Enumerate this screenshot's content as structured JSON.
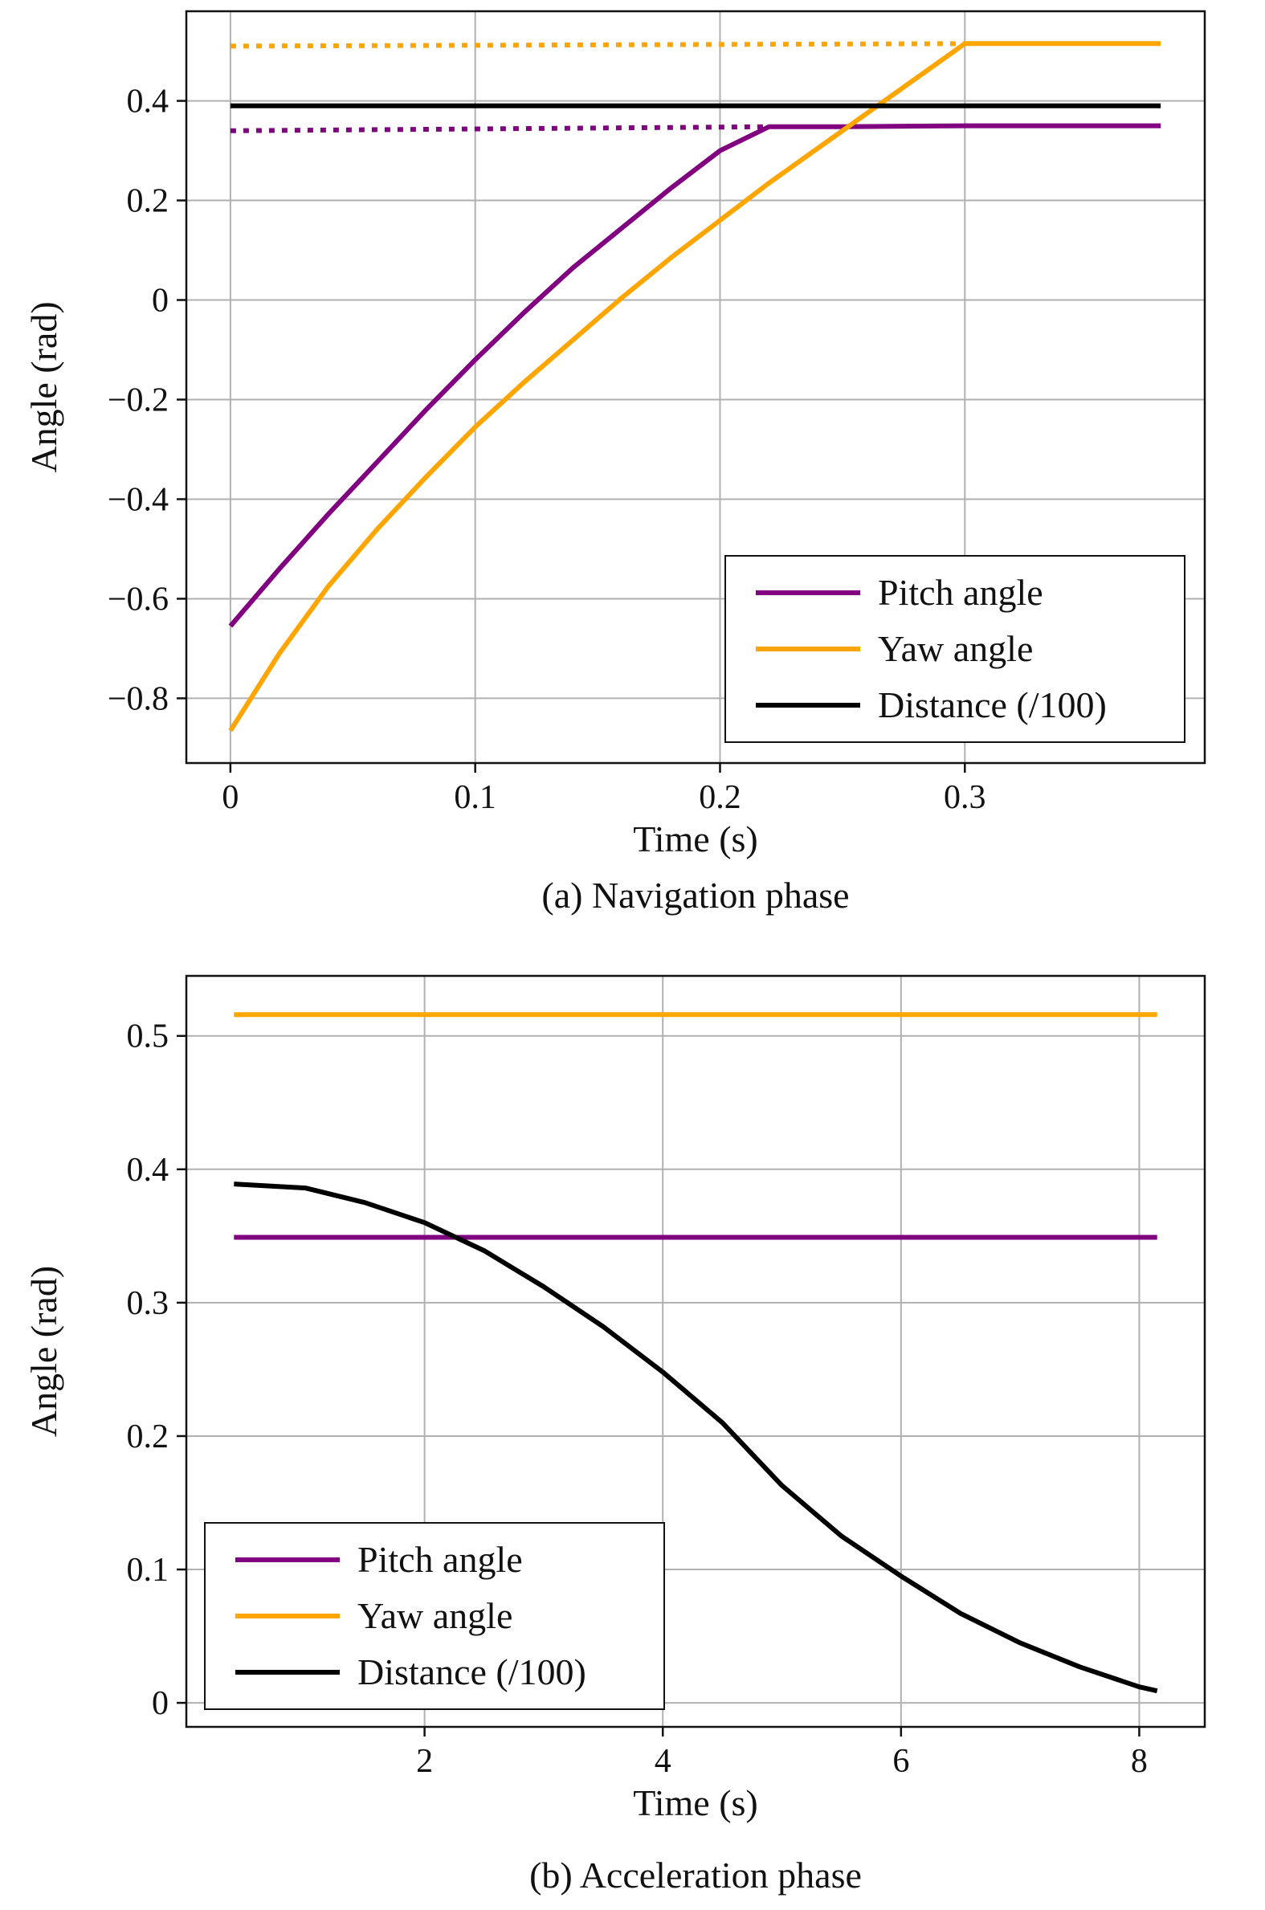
{
  "figure": {
    "panels": [
      {
        "caption": "(a) Navigation phase",
        "xlabel": "Time (s)",
        "ylabel": "Angle (rad)",
        "legend": {
          "location": "lower right",
          "entries": [
            "Pitch angle",
            "Yaw angle",
            "Distance (/100)"
          ]
        }
      },
      {
        "caption": "(b) Acceleration phase",
        "xlabel": "Time (s)",
        "ylabel": "Angle (rad)",
        "legend": {
          "location": "lower left",
          "entries": [
            "Pitch angle",
            "Yaw angle",
            "Distance (/100)"
          ]
        }
      }
    ]
  },
  "colors": {
    "pitch": "#800080",
    "yaw": "#FFA500",
    "distance": "#000000",
    "grid": "#b0b0b0"
  },
  "chart_data": [
    {
      "type": "line",
      "title": "(a) Navigation phase",
      "xlabel": "Time (s)",
      "ylabel": "Angle (rad)",
      "xlim": [
        -0.018,
        0.398
      ],
      "ylim": [
        -0.93,
        0.58
      ],
      "xticks": [
        0,
        0.1,
        0.2,
        0.3
      ],
      "xtick_labels": [
        "0",
        "0.1",
        "0.2",
        "0.3"
      ],
      "yticks": [
        -0.8,
        -0.6,
        -0.4,
        -0.2,
        0,
        0.2,
        0.4
      ],
      "ytick_labels": [
        "−0.8",
        "−0.6",
        "−0.4",
        "−0.2",
        "0",
        "0.2",
        "0.4"
      ],
      "grid": true,
      "legend_placement": "lower right",
      "series": [
        {
          "name": "Pitch angle",
          "color_key": "pitch",
          "style": "solid",
          "x": [
            0,
            0.02,
            0.04,
            0.06,
            0.08,
            0.1,
            0.12,
            0.14,
            0.16,
            0.18,
            0.2,
            0.22,
            0.25,
            0.3,
            0.35,
            0.38
          ],
          "y": [
            -0.655,
            -0.54,
            -0.43,
            -0.325,
            -0.22,
            -0.12,
            -0.025,
            0.065,
            0.145,
            0.225,
            0.3,
            0.348,
            0.348,
            0.35,
            0.35,
            0.35
          ]
        },
        {
          "name": "Yaw angle",
          "color_key": "yaw",
          "style": "solid",
          "x": [
            0,
            0.02,
            0.04,
            0.06,
            0.08,
            0.1,
            0.12,
            0.14,
            0.16,
            0.18,
            0.2,
            0.22,
            0.24,
            0.26,
            0.28,
            0.3,
            0.34,
            0.38
          ],
          "y": [
            -0.865,
            -0.71,
            -0.575,
            -0.46,
            -0.355,
            -0.255,
            -0.165,
            -0.08,
            0.005,
            0.085,
            0.16,
            0.235,
            0.305,
            0.375,
            0.445,
            0.515,
            0.515,
            0.515
          ]
        },
        {
          "name": "Distance (/100)",
          "color_key": "distance",
          "style": "solid",
          "x": [
            0,
            0.38
          ],
          "y": [
            0.39,
            0.39
          ]
        },
        {
          "color_key": "pitch",
          "style": "dotted",
          "x": [
            0,
            0.22
          ],
          "y": [
            0.34,
            0.348
          ]
        },
        {
          "color_key": "yaw",
          "style": "dotted",
          "x": [
            0,
            0.3
          ],
          "y": [
            0.51,
            0.515
          ]
        }
      ]
    },
    {
      "type": "line",
      "title": "(b) Acceleration phase",
      "xlabel": "Time (s)",
      "ylabel": "Angle (rad)",
      "xlim": [
        -0.0,
        8.55
      ],
      "ylim": [
        -0.018,
        0.545
      ],
      "xticks": [
        2,
        4,
        6,
        8
      ],
      "xtick_labels": [
        "2",
        "4",
        "6",
        "8"
      ],
      "yticks": [
        0,
        0.1,
        0.2,
        0.3,
        0.4,
        0.5
      ],
      "ytick_labels": [
        "0",
        "0.1",
        "0.2",
        "0.3",
        "0.4",
        "0.5"
      ],
      "grid": true,
      "legend_placement": "lower left",
      "series": [
        {
          "name": "Pitch angle",
          "color_key": "pitch",
          "style": "solid",
          "x": [
            0.4,
            8.15
          ],
          "y": [
            0.349,
            0.349
          ]
        },
        {
          "name": "Yaw angle",
          "color_key": "yaw",
          "style": "solid",
          "x": [
            0.4,
            8.15
          ],
          "y": [
            0.516,
            0.516
          ]
        },
        {
          "name": "Distance (/100)",
          "color_key": "distance",
          "style": "solid",
          "x": [
            0.4,
            1.0,
            1.5,
            2.0,
            2.5,
            3.0,
            3.5,
            4.0,
            4.5,
            5.0,
            5.5,
            6.0,
            6.5,
            7.0,
            7.5,
            8.0,
            8.15
          ],
          "y": [
            0.389,
            0.386,
            0.375,
            0.36,
            0.339,
            0.312,
            0.282,
            0.248,
            0.21,
            0.163,
            0.125,
            0.095,
            0.067,
            0.045,
            0.027,
            0.012,
            0.009
          ]
        }
      ]
    }
  ]
}
